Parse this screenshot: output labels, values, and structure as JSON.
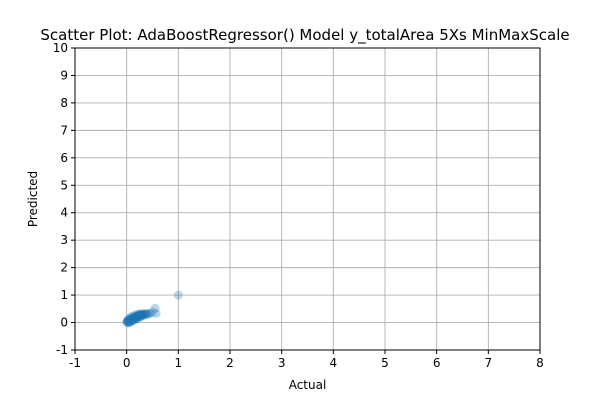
{
  "chart_data": {
    "type": "scatter",
    "title": "Scatter Plot: AdaBoostRegressor() Model y_totalArea 5Xs MinMaxScale",
    "xlabel": "Actual",
    "ylabel": "Predicted",
    "xlim": [
      -1,
      8
    ],
    "ylim": [
      -1,
      10
    ],
    "xticks": [
      -1,
      0,
      1,
      2,
      3,
      4,
      5,
      6,
      7,
      8
    ],
    "yticks": [
      -1,
      0,
      1,
      2,
      3,
      4,
      5,
      6,
      7,
      8,
      9,
      10
    ],
    "grid": true,
    "color": "#1f77b4",
    "marker_alpha": 0.3,
    "series": [
      {
        "x": [
          0.0,
          0.01,
          0.02,
          0.03,
          0.04,
          0.05,
          0.06,
          0.07,
          0.08,
          0.09,
          0.1,
          0.11,
          0.12,
          0.13,
          0.14,
          0.15,
          0.16,
          0.17,
          0.18,
          0.19,
          0.2,
          0.21,
          0.22,
          0.23,
          0.24,
          0.25,
          0.26,
          0.27,
          0.28,
          0.3,
          0.32,
          0.34,
          0.36,
          0.38,
          0.4,
          0.42,
          0.45,
          0.05,
          0.08,
          0.12,
          0.15,
          0.18,
          0.22,
          0.25,
          0.28,
          0.32,
          0.35,
          0.02,
          0.06,
          0.1,
          0.14,
          0.2,
          0.24,
          0.3,
          0.03,
          0.07,
          0.11,
          0.16,
          0.19,
          0.26,
          0.55,
          0.57,
          0.5,
          1.0
        ],
        "y": [
          0.02,
          0.03,
          0.05,
          0.06,
          0.07,
          0.08,
          0.09,
          0.1,
          0.11,
          0.12,
          0.13,
          0.14,
          0.15,
          0.16,
          0.17,
          0.18,
          0.19,
          0.2,
          0.21,
          0.22,
          0.23,
          0.24,
          0.24,
          0.25,
          0.26,
          0.27,
          0.27,
          0.28,
          0.28,
          0.29,
          0.3,
          0.3,
          0.31,
          0.31,
          0.32,
          0.32,
          0.33,
          0.0,
          0.04,
          0.08,
          0.12,
          0.15,
          0.18,
          0.21,
          0.23,
          0.26,
          0.28,
          0.1,
          0.17,
          0.22,
          0.25,
          0.3,
          0.31,
          0.33,
          -0.02,
          0.02,
          0.06,
          0.1,
          0.13,
          0.2,
          0.52,
          0.33,
          0.38,
          1.0
        ]
      }
    ]
  }
}
